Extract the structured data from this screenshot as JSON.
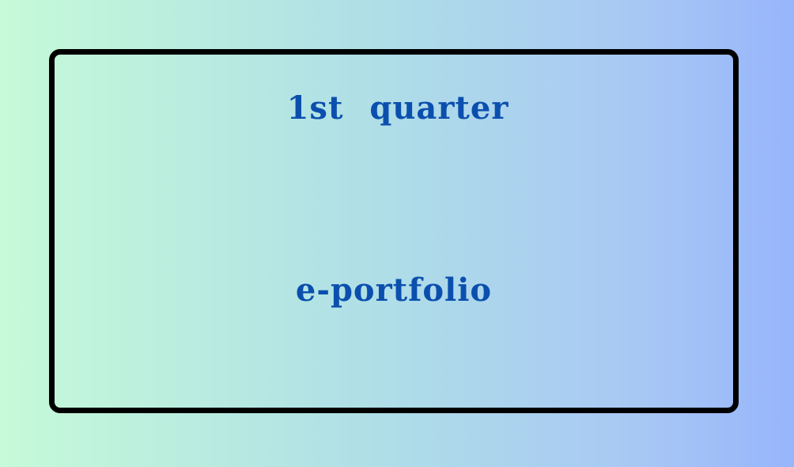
{
  "card": {
    "line1": "1st quarter",
    "line2": "e-portfolio"
  },
  "colors": {
    "text": "#0b4fae",
    "border": "#000000",
    "background_left": "#c6fad8",
    "background_right": "#97b5fb"
  }
}
